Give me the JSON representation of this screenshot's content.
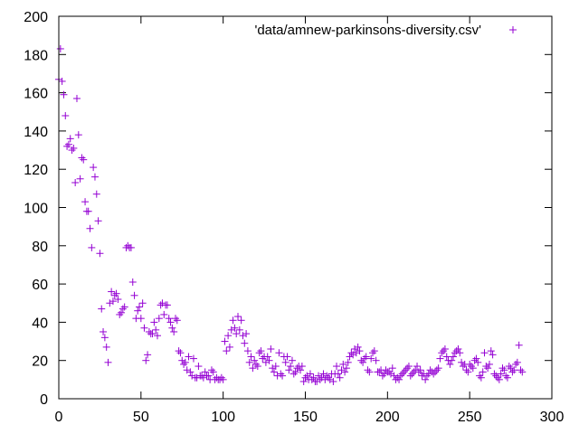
{
  "colors": {
    "series": "#9400d3",
    "axis": "#000000",
    "background": "#ffffff"
  },
  "chart_data": {
    "type": "scatter",
    "marker": "plus",
    "title": "",
    "xlabel": "",
    "ylabel": "",
    "xlim": [
      0,
      300
    ],
    "ylim": [
      0,
      200
    ],
    "xticks": [
      0,
      50,
      100,
      150,
      200,
      250,
      300
    ],
    "yticks": [
      0,
      20,
      40,
      60,
      80,
      100,
      120,
      140,
      160,
      180,
      200
    ],
    "grid": false,
    "legend": {
      "placement": "top-right"
    },
    "series": [
      {
        "name": "'data/amnew-parkinsons-diversity.csv'",
        "points": [
          [
            0,
            167
          ],
          [
            1,
            183
          ],
          [
            2,
            166
          ],
          [
            3,
            159
          ],
          [
            4,
            148
          ],
          [
            5,
            132
          ],
          [
            6,
            133
          ],
          [
            7,
            136
          ],
          [
            8,
            130
          ],
          [
            9,
            131
          ],
          [
            10,
            113
          ],
          [
            11,
            157
          ],
          [
            12,
            138
          ],
          [
            13,
            115
          ],
          [
            14,
            126
          ],
          [
            15,
            125
          ],
          [
            16,
            103
          ],
          [
            17,
            98
          ],
          [
            18,
            98
          ],
          [
            19,
            89
          ],
          [
            20,
            79
          ],
          [
            21,
            121
          ],
          [
            22,
            116
          ],
          [
            23,
            107
          ],
          [
            24,
            93
          ],
          [
            25,
            76
          ],
          [
            26,
            47
          ],
          [
            27,
            35
          ],
          [
            28,
            32
          ],
          [
            29,
            27
          ],
          [
            30,
            19
          ],
          [
            31,
            50
          ],
          [
            32,
            56
          ],
          [
            33,
            51
          ],
          [
            34,
            54
          ],
          [
            35,
            55
          ],
          [
            36,
            52
          ],
          [
            37,
            44
          ],
          [
            38,
            45
          ],
          [
            39,
            47
          ],
          [
            40,
            48
          ],
          [
            41,
            79
          ],
          [
            42,
            80
          ],
          [
            43,
            79
          ],
          [
            44,
            79
          ],
          [
            45,
            61
          ],
          [
            46,
            54
          ],
          [
            47,
            42
          ],
          [
            48,
            46
          ],
          [
            49,
            48
          ],
          [
            50,
            42
          ],
          [
            51,
            50
          ],
          [
            52,
            37
          ],
          [
            53,
            20
          ],
          [
            54,
            23
          ],
          [
            55,
            35
          ],
          [
            56,
            34
          ],
          [
            57,
            34
          ],
          [
            58,
            40
          ],
          [
            59,
            36
          ],
          [
            60,
            33
          ],
          [
            61,
            42
          ],
          [
            62,
            49
          ],
          [
            63,
            50
          ],
          [
            64,
            44
          ],
          [
            65,
            49
          ],
          [
            66,
            49
          ],
          [
            67,
            42
          ],
          [
            68,
            40
          ],
          [
            69,
            37
          ],
          [
            70,
            35
          ],
          [
            71,
            42
          ],
          [
            72,
            41
          ],
          [
            73,
            25
          ],
          [
            74,
            24
          ],
          [
            75,
            20
          ],
          [
            76,
            18
          ],
          [
            77,
            19
          ],
          [
            78,
            15
          ],
          [
            79,
            22
          ],
          [
            80,
            14
          ],
          [
            81,
            12
          ],
          [
            82,
            21
          ],
          [
            83,
            11
          ],
          [
            84,
            11
          ],
          [
            85,
            17
          ],
          [
            86,
            12
          ],
          [
            87,
            12
          ],
          [
            88,
            11
          ],
          [
            89,
            14
          ],
          [
            90,
            12
          ],
          [
            91,
            12
          ],
          [
            92,
            10
          ],
          [
            93,
            15
          ],
          [
            94,
            14
          ],
          [
            95,
            10
          ],
          [
            96,
            11
          ],
          [
            97,
            10
          ],
          [
            98,
            10
          ],
          [
            99,
            11
          ],
          [
            100,
            10
          ],
          [
            101,
            30
          ],
          [
            102,
            25
          ],
          [
            103,
            33
          ],
          [
            104,
            27
          ],
          [
            105,
            36
          ],
          [
            106,
            41
          ],
          [
            107,
            37
          ],
          [
            108,
            34
          ],
          [
            109,
            43
          ],
          [
            110,
            36
          ],
          [
            111,
            41
          ],
          [
            112,
            33
          ],
          [
            113,
            29
          ],
          [
            114,
            34
          ],
          [
            115,
            25
          ],
          [
            116,
            19
          ],
          [
            117,
            22
          ],
          [
            118,
            16
          ],
          [
            119,
            20
          ],
          [
            120,
            18
          ],
          [
            121,
            17
          ],
          [
            122,
            24
          ],
          [
            123,
            25
          ],
          [
            124,
            21
          ],
          [
            125,
            22
          ],
          [
            126,
            19
          ],
          [
            127,
            22
          ],
          [
            128,
            20
          ],
          [
            129,
            26
          ],
          [
            130,
            16
          ],
          [
            131,
            14
          ],
          [
            132,
            17
          ],
          [
            133,
            12
          ],
          [
            134,
            24
          ],
          [
            135,
            13
          ],
          [
            136,
            12
          ],
          [
            137,
            22
          ],
          [
            138,
            19
          ],
          [
            139,
            22
          ],
          [
            140,
            15
          ],
          [
            141,
            17
          ],
          [
            142,
            20
          ],
          [
            143,
            13
          ],
          [
            144,
            14
          ],
          [
            145,
            16
          ],
          [
            146,
            17
          ],
          [
            147,
            15
          ],
          [
            148,
            17
          ],
          [
            149,
            9
          ],
          [
            150,
            11
          ],
          [
            151,
            12
          ],
          [
            152,
            10
          ],
          [
            153,
            13
          ],
          [
            154,
            10
          ],
          [
            155,
            11
          ],
          [
            156,
            9
          ],
          [
            157,
            9
          ],
          [
            158,
            12
          ],
          [
            159,
            10
          ],
          [
            160,
            11
          ],
          [
            161,
            13
          ],
          [
            162,
            10
          ],
          [
            163,
            12
          ],
          [
            164,
            11
          ],
          [
            165,
            10
          ],
          [
            166,
            13
          ],
          [
            167,
            9
          ],
          [
            168,
            13
          ],
          [
            169,
            17
          ],
          [
            170,
            13
          ],
          [
            171,
            11
          ],
          [
            172,
            15
          ],
          [
            173,
            18
          ],
          [
            174,
            14
          ],
          [
            175,
            16
          ],
          [
            176,
            19
          ],
          [
            177,
            22
          ],
          [
            178,
            24
          ],
          [
            179,
            23
          ],
          [
            180,
            26
          ],
          [
            181,
            24
          ],
          [
            182,
            27
          ],
          [
            183,
            25
          ],
          [
            184,
            20
          ],
          [
            185,
            19
          ],
          [
            186,
            21
          ],
          [
            187,
            22
          ],
          [
            188,
            15
          ],
          [
            189,
            14
          ],
          [
            190,
            21
          ],
          [
            191,
            24
          ],
          [
            192,
            25
          ],
          [
            193,
            20
          ],
          [
            194,
            14
          ],
          [
            195,
            14
          ],
          [
            196,
            15
          ],
          [
            197,
            12
          ],
          [
            198,
            13
          ],
          [
            199,
            15
          ],
          [
            200,
            14
          ],
          [
            201,
            14
          ],
          [
            202,
            13
          ],
          [
            203,
            16
          ],
          [
            204,
            12
          ],
          [
            205,
            10
          ],
          [
            206,
            11
          ],
          [
            207,
            10
          ],
          [
            208,
            12
          ],
          [
            209,
            13
          ],
          [
            210,
            14
          ],
          [
            211,
            15
          ],
          [
            212,
            16
          ],
          [
            213,
            17
          ],
          [
            214,
            12
          ],
          [
            215,
            13
          ],
          [
            216,
            14
          ],
          [
            217,
            15
          ],
          [
            218,
            17
          ],
          [
            219,
            14
          ],
          [
            220,
            15
          ],
          [
            221,
            12
          ],
          [
            222,
            13
          ],
          [
            223,
            10
          ],
          [
            224,
            12
          ],
          [
            225,
            13
          ],
          [
            226,
            15
          ],
          [
            227,
            14
          ],
          [
            228,
            13
          ],
          [
            229,
            14
          ],
          [
            230,
            15
          ],
          [
            231,
            16
          ],
          [
            232,
            21
          ],
          [
            233,
            24
          ],
          [
            234,
            25
          ],
          [
            235,
            26
          ],
          [
            236,
            22
          ],
          [
            237,
            20
          ],
          [
            238,
            18
          ],
          [
            239,
            20
          ],
          [
            240,
            22
          ],
          [
            241,
            24
          ],
          [
            242,
            25
          ],
          [
            243,
            26
          ],
          [
            244,
            24
          ],
          [
            245,
            19
          ],
          [
            246,
            17
          ],
          [
            247,
            18
          ],
          [
            248,
            15
          ],
          [
            249,
            14
          ],
          [
            250,
            18
          ],
          [
            251,
            17
          ],
          [
            252,
            16
          ],
          [
            253,
            20
          ],
          [
            254,
            21
          ],
          [
            255,
            19
          ],
          [
            256,
            12
          ],
          [
            257,
            11
          ],
          [
            258,
            14
          ],
          [
            259,
            24
          ],
          [
            260,
            17
          ],
          [
            261,
            16
          ],
          [
            262,
            18
          ],
          [
            263,
            25
          ],
          [
            264,
            23
          ],
          [
            265,
            13
          ],
          [
            266,
            12
          ],
          [
            267,
            11
          ],
          [
            268,
            10
          ],
          [
            269,
            13
          ],
          [
            270,
            16
          ],
          [
            271,
            15
          ],
          [
            272,
            12
          ],
          [
            273,
            11
          ],
          [
            274,
            17
          ],
          [
            275,
            16
          ],
          [
            276,
            14
          ],
          [
            277,
            15
          ],
          [
            278,
            18
          ],
          [
            279,
            19
          ],
          [
            280,
            28
          ],
          [
            281,
            15
          ],
          [
            282,
            14
          ]
        ]
      }
    ]
  }
}
